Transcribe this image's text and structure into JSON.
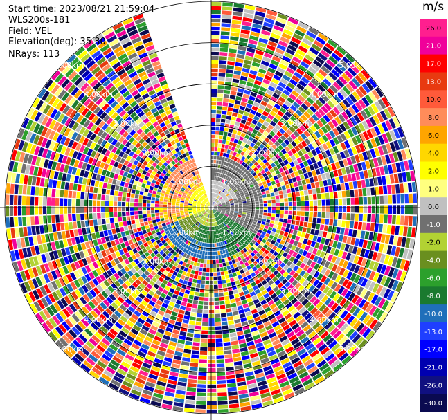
{
  "info": {
    "start_time": "Start time: 2023/08/21 21:59:04",
    "station": "WLS200s-181",
    "field": "Field: VEL",
    "elevation": "Elevation(deg): 35.30",
    "nrays": "NRays: 113"
  },
  "chart_data": {
    "type": "heatmap",
    "projection": "polar-ppi",
    "field": "VEL",
    "units": "m/s",
    "elevation_deg": 35.3,
    "n_rays": 113,
    "max_range_km": 5.0,
    "range_ring_labels": [
      "1.00km",
      "2.00km",
      "3.00km",
      "4.00km",
      "5.00km"
    ],
    "missing_sector_deg": [
      340,
      360
    ],
    "colorbar": {
      "ticks": [
        "26.0",
        "21.0",
        "17.0",
        "13.0",
        "10.0",
        "8.0",
        "6.0",
        "4.0",
        "2.0",
        "1.0",
        "0.0",
        "-1.0",
        "-2.0",
        "-4.0",
        "-6.0",
        "-8.0",
        "-10.0",
        "-13.0",
        "-17.0",
        "-21.0",
        "-26.0",
        "-30.0"
      ],
      "colors": [
        "#ff1f8f",
        "#f0009a",
        "#ff0000",
        "#e83a10",
        "#ff5a3a",
        "#ff8c5a",
        "#ffa500",
        "#ffd700",
        "#ffff00",
        "#ffff7f",
        "#c0c0c0",
        "#707070",
        "#b2d233",
        "#6a8f1f",
        "#2ca02c",
        "#1a7a2f",
        "#1f6fba",
        "#1f3fff",
        "#0000ff",
        "#0000b0",
        "#101080",
        "#0a0a50"
      ]
    },
    "structure_summary": "Near-range (< ~1.3 km) shows smooth velocity pattern: positive (yellow-orange, +2 to +8 m/s) toward the west/northwest, near zero (gray) toward the east, negative (green to blue, -2 to -10 m/s) toward the south/southwest; farther range is dominated by noisy random values across the full scale."
  }
}
